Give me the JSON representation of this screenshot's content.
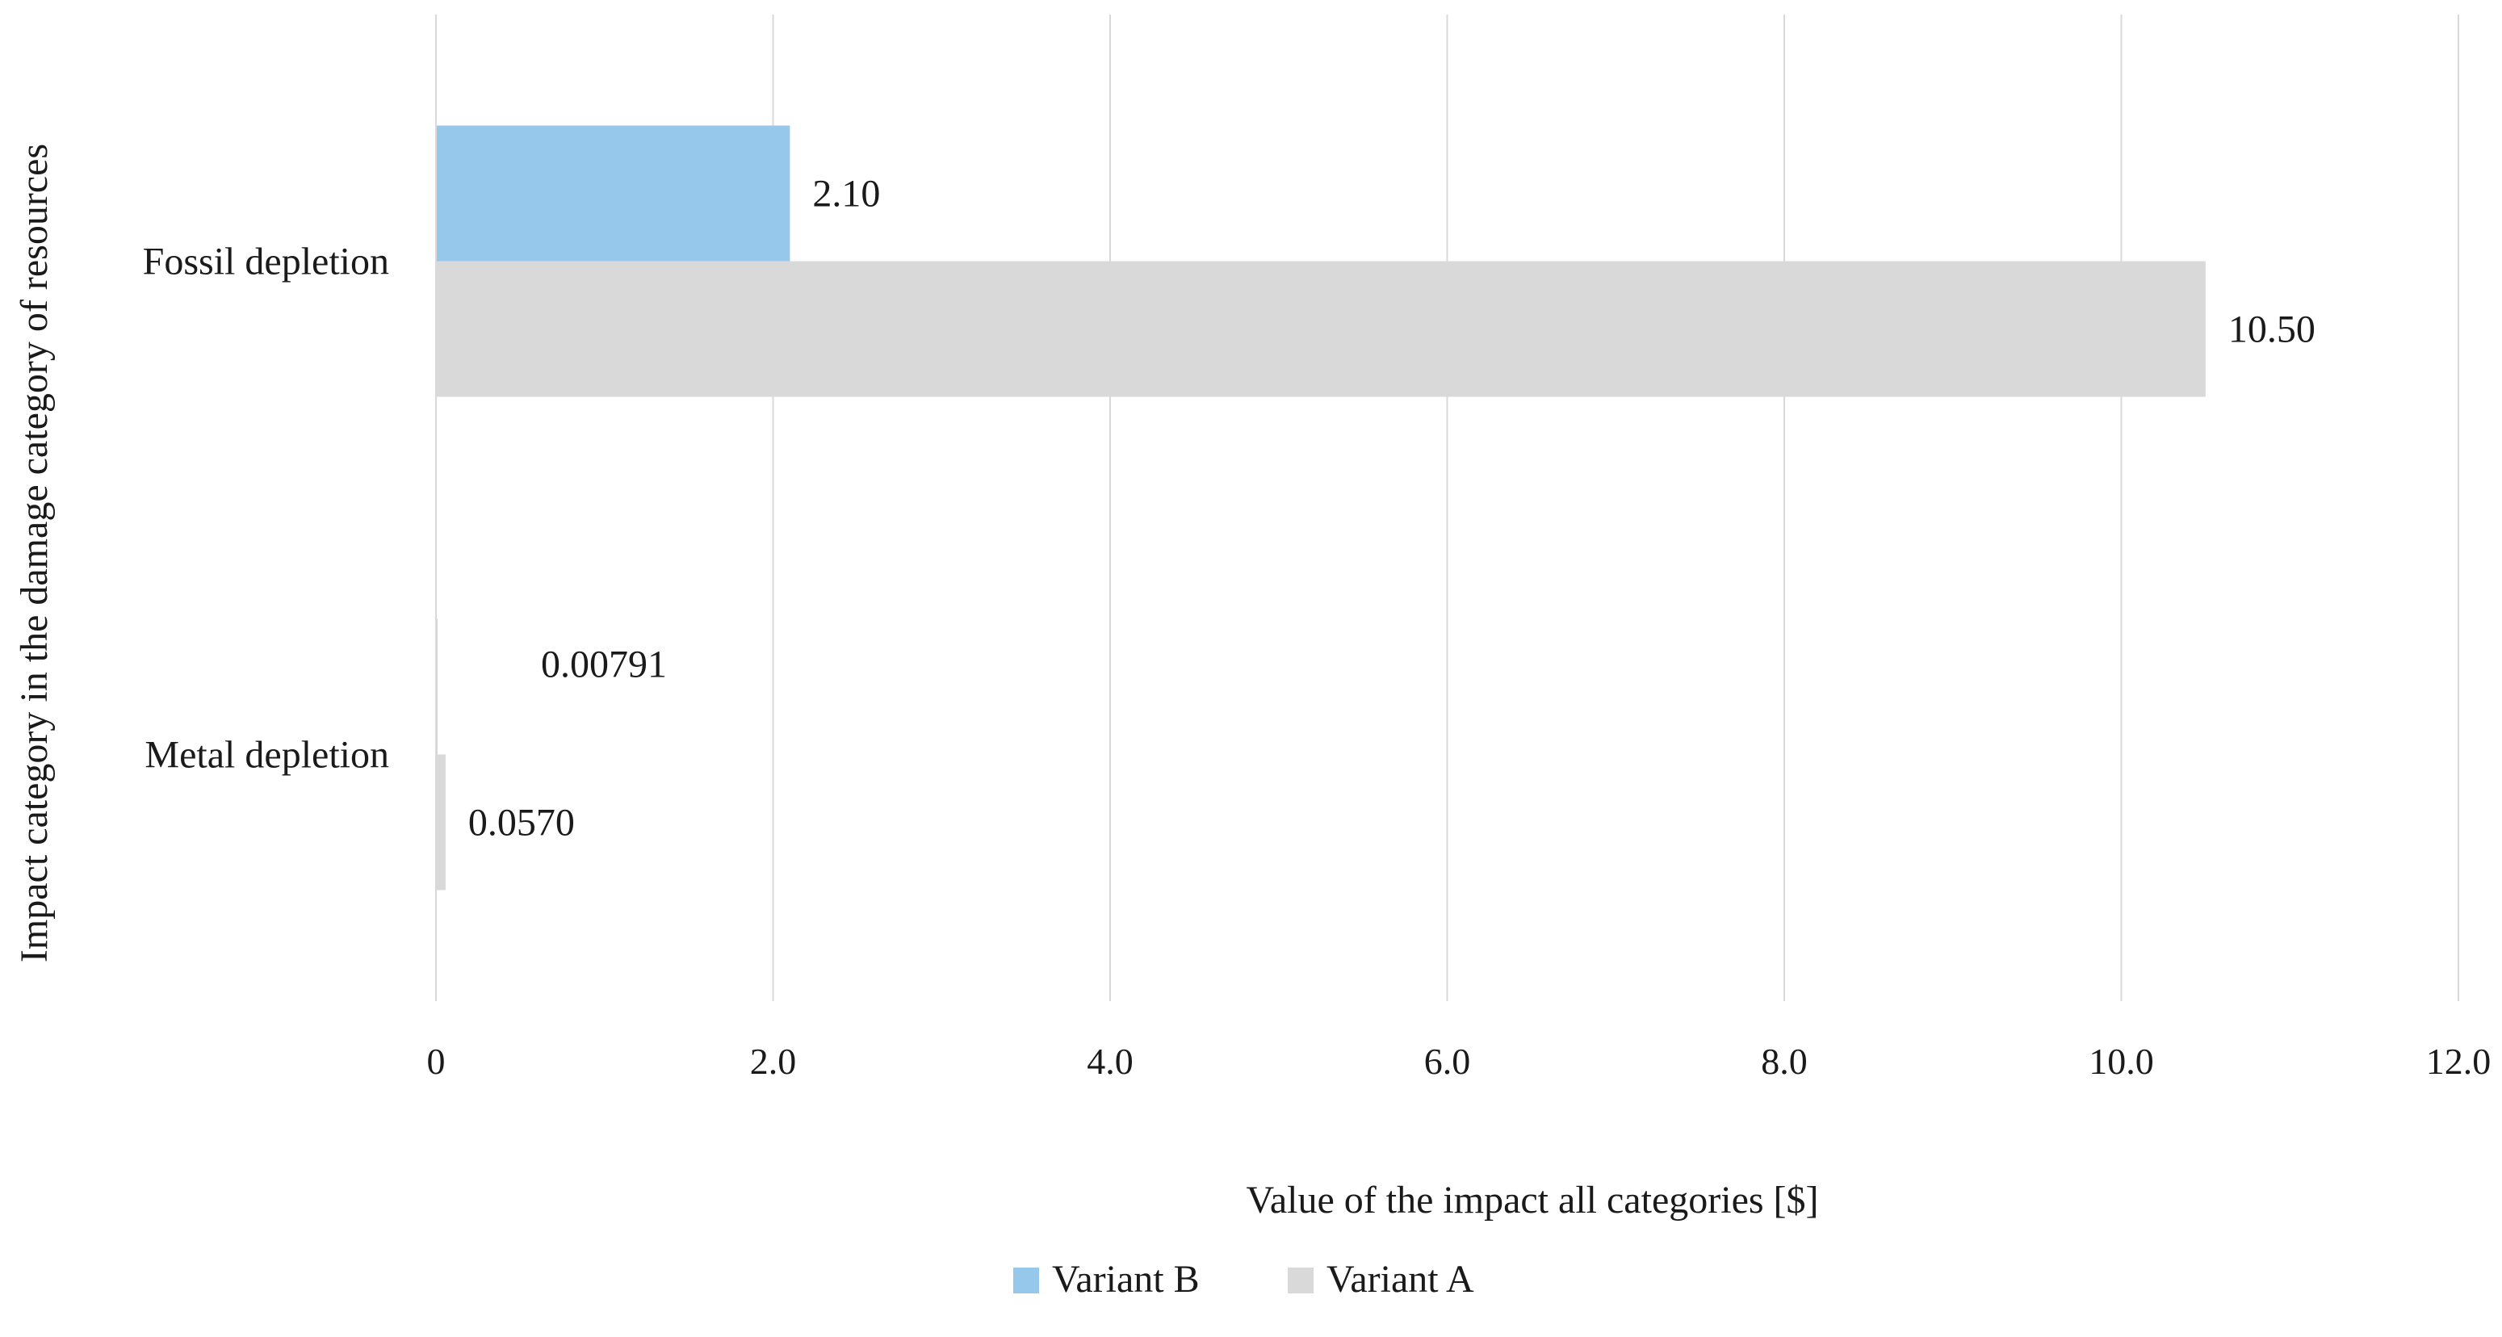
{
  "chart_data": {
    "type": "bar",
    "orientation": "horizontal",
    "categories": [
      "Fossil depletion",
      "Metal depletion"
    ],
    "series": [
      {
        "name": "Variant B",
        "color": "#96C8EC",
        "values": [
          2.1,
          0.00791
        ],
        "labels": [
          "2.10",
          "0.00791"
        ]
      },
      {
        "name": "Variant A",
        "color": "#D9D9D9",
        "values": [
          10.5,
          0.057
        ],
        "labels": [
          "10.50",
          "0.0570"
        ]
      }
    ],
    "xlabel": "Value of the impact all categories [$]",
    "ylabel": "Impact category in the damage category of  resources",
    "xlim": [
      0,
      12
    ],
    "xticks": [
      0,
      2,
      4,
      6,
      8,
      10,
      12
    ],
    "xtick_labels": [
      "0",
      "2.0",
      "4.0",
      "6.0",
      "8.0",
      "10.0",
      "12.0"
    ],
    "grid": "vertical",
    "legend": "bottom"
  }
}
